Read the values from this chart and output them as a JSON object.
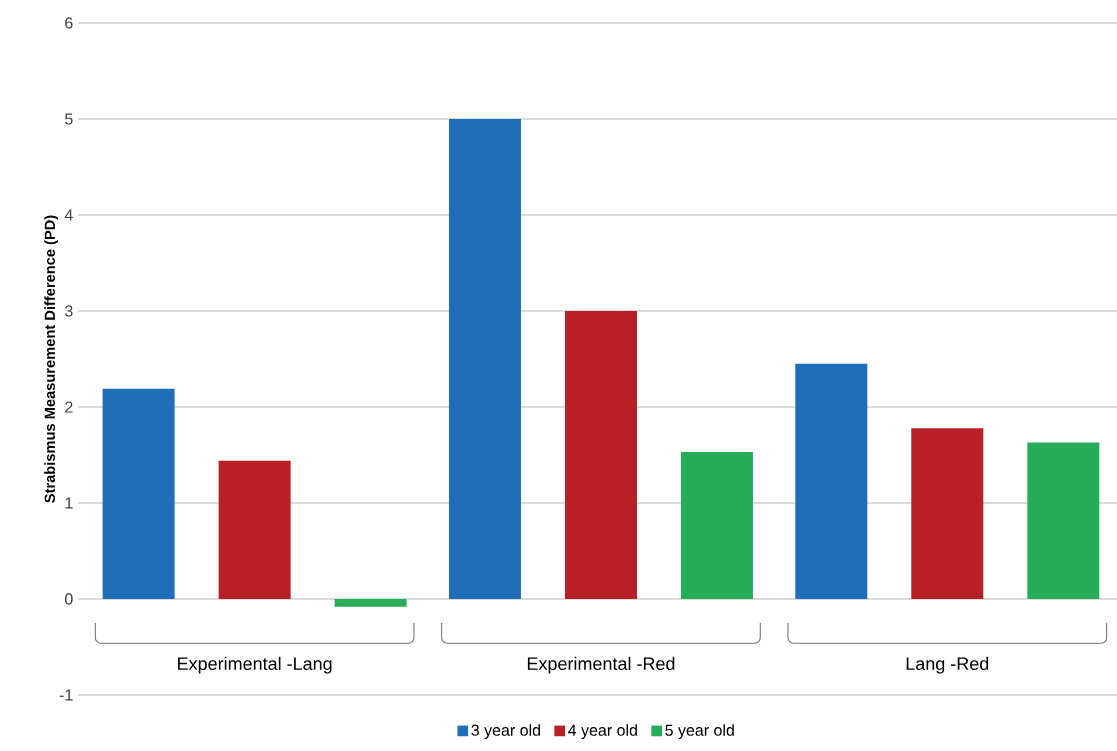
{
  "chart_data": {
    "type": "bar",
    "ylabel": "Strabismus Measurement Difference (PD)",
    "categories": [
      "Experimental -Lang",
      "Experimental -Red",
      "Lang -Red"
    ],
    "series": [
      {
        "name": "3 year old",
        "color": "#1f6eb7",
        "values": [
          2.19,
          5,
          2.45
        ]
      },
      {
        "name": "4 year old",
        "color": "#b82025",
        "values": [
          1.44,
          3,
          1.78
        ]
      },
      {
        "name": "5 year old",
        "color": "#27ad5a",
        "values": [
          -0.08,
          1.53,
          1.63
        ]
      }
    ],
    "ylim": [
      -1,
      6
    ],
    "yticks": [
      -1,
      0,
      1,
      2,
      3,
      4,
      5,
      6
    ],
    "grid": "y",
    "legend": "bottom"
  }
}
